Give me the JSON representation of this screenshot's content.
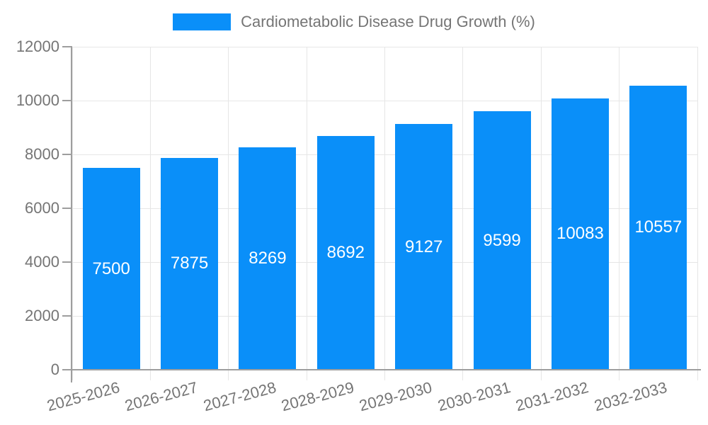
{
  "legend": {
    "label": "Cardiometabolic Disease Drug Growth (%)",
    "position": "top"
  },
  "chart_data": {
    "type": "bar",
    "title": "Cardiometabolic Disease Drug Growth (%)",
    "categories": [
      "2025-2026",
      "2026-2027",
      "2027-2028",
      "2028-2029",
      "2029-2030",
      "2030-2031",
      "2031-2032",
      "2032-2033"
    ],
    "values": [
      7500,
      7875,
      8269,
      8692,
      9127,
      9599,
      10083,
      10557
    ],
    "xlabel": "",
    "ylabel": "",
    "ylim": [
      0,
      12000
    ],
    "yticks": [
      0,
      2000,
      4000,
      6000,
      8000,
      10000,
      12000
    ],
    "grid": true,
    "legend_position": "top",
    "x_label_rotation": -15,
    "bar_color": "#0a8ff9",
    "value_label_color": "#ffffff",
    "grid_color": "#e6e6e6",
    "axis_color": "#9e9e9e",
    "text_color": "#757575"
  }
}
